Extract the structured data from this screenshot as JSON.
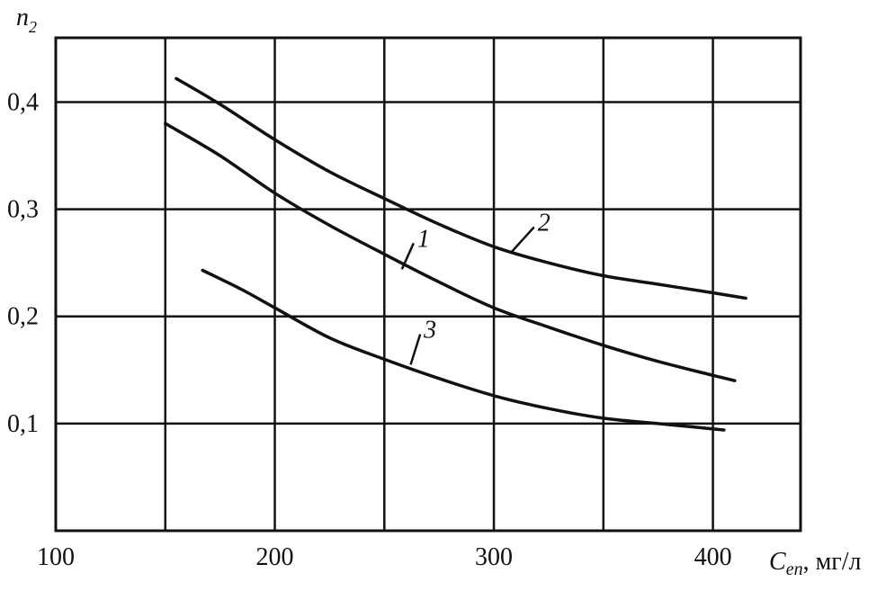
{
  "chart_data": {
    "type": "line",
    "ylabel": "n",
    "ylabel_sub": "2",
    "xlabel_main": "C",
    "xlabel_sub": "еп",
    "xlabel_unit": ", мг/л",
    "xlim": [
      100,
      440
    ],
    "ylim": [
      0,
      0.46
    ],
    "grid": true,
    "x_ticks": [
      {
        "value": 100,
        "label": "100"
      },
      {
        "value": 200,
        "label": "200"
      },
      {
        "value": 300,
        "label": "300"
      },
      {
        "value": 400,
        "label": "400"
      }
    ],
    "y_ticks": [
      {
        "value": 0.1,
        "label": "0,1"
      },
      {
        "value": 0.2,
        "label": "0,2"
      },
      {
        "value": 0.3,
        "label": "0,3"
      },
      {
        "value": 0.4,
        "label": "0,4"
      }
    ],
    "x_grid": [
      150,
      200,
      250,
      300,
      350,
      400
    ],
    "y_grid": [
      0.1,
      0.2,
      0.3,
      0.4
    ],
    "series": [
      {
        "name": "1",
        "points": [
          [
            150,
            0.38
          ],
          [
            175,
            0.35
          ],
          [
            200,
            0.315
          ],
          [
            225,
            0.285
          ],
          [
            250,
            0.258
          ],
          [
            275,
            0.232
          ],
          [
            300,
            0.208
          ],
          [
            325,
            0.19
          ],
          [
            350,
            0.173
          ],
          [
            375,
            0.158
          ],
          [
            400,
            0.145
          ],
          [
            410,
            0.14
          ]
        ],
        "label_at": [
          265,
          0.265
        ],
        "leader_to": [
          258,
          0.244
        ]
      },
      {
        "name": "2",
        "points": [
          [
            155,
            0.422
          ],
          [
            175,
            0.398
          ],
          [
            200,
            0.365
          ],
          [
            225,
            0.335
          ],
          [
            250,
            0.31
          ],
          [
            275,
            0.286
          ],
          [
            300,
            0.265
          ],
          [
            325,
            0.25
          ],
          [
            350,
            0.238
          ],
          [
            375,
            0.23
          ],
          [
            400,
            0.222
          ],
          [
            415,
            0.217
          ]
        ],
        "label_at": [
          320,
          0.28
        ],
        "leader_to": [
          308,
          0.26
        ]
      },
      {
        "name": "3",
        "points": [
          [
            167,
            0.243
          ],
          [
            185,
            0.225
          ],
          [
            200,
            0.208
          ],
          [
            225,
            0.18
          ],
          [
            250,
            0.16
          ],
          [
            275,
            0.142
          ],
          [
            300,
            0.126
          ],
          [
            325,
            0.114
          ],
          [
            350,
            0.105
          ],
          [
            375,
            0.1
          ],
          [
            390,
            0.097
          ],
          [
            405,
            0.094
          ]
        ],
        "label_at": [
          268,
          0.18
        ],
        "leader_to": [
          262,
          0.155
        ]
      }
    ]
  }
}
